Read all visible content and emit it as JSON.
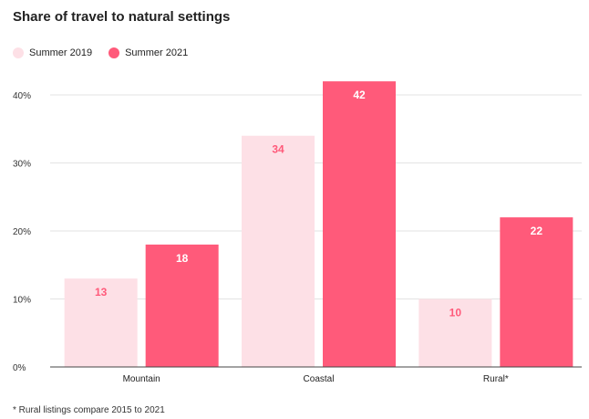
{
  "chart_data": {
    "type": "bar",
    "title": "Share of travel to natural settings",
    "categories": [
      "Mountain",
      "Coastal",
      "Rural*"
    ],
    "series": [
      {
        "name": "Summer 2019",
        "values": [
          13,
          34,
          10
        ],
        "color": "#fde0e6",
        "label_color": "#ff5a7a"
      },
      {
        "name": "Summer 2021",
        "values": [
          18,
          42,
          22
        ],
        "color": "#ff5a7a",
        "label_color": "#ffffff"
      }
    ],
    "ylim": [
      0,
      40
    ],
    "yticks": [
      0,
      10,
      20,
      30,
      40
    ],
    "ytick_labels": [
      "0%",
      "10%",
      "20%",
      "30%",
      "40%"
    ],
    "grid": true,
    "legend_position": "top-left",
    "xlabel": "",
    "ylabel": "",
    "footnote": "* Rural listings compare 2015 to 2021"
  }
}
